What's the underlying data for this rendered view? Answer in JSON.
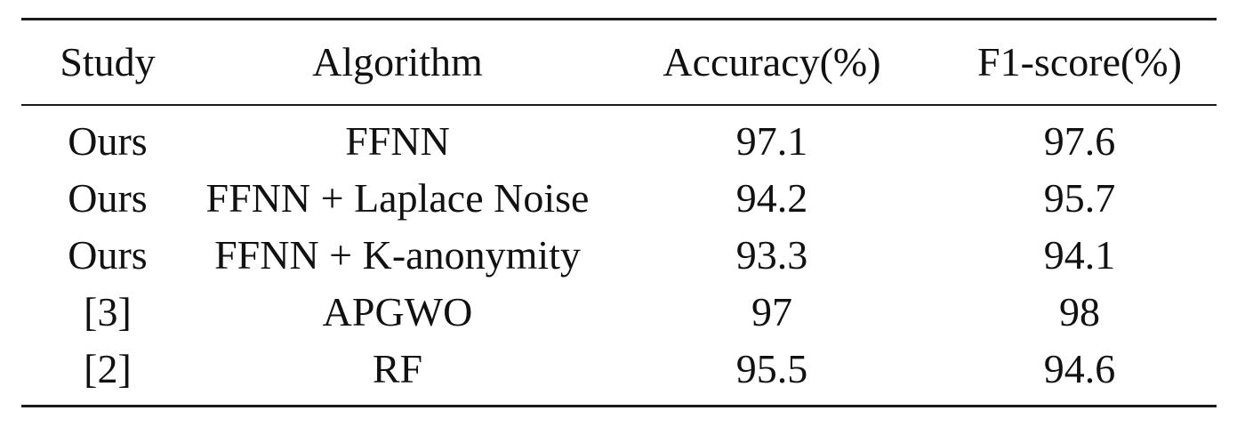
{
  "table": {
    "headers": [
      "Study",
      "Algorithm",
      "Accuracy(%)",
      "F1-score(%)"
    ],
    "rows": [
      [
        "Ours",
        "FFNN",
        "97.1",
        "97.6"
      ],
      [
        "Ours",
        "FFNN + Laplace Noise",
        "94.2",
        "95.7"
      ],
      [
        "Ours",
        "FFNN + K-anonymity",
        "93.3",
        "94.1"
      ],
      [
        "[3]",
        "APGWO",
        "97",
        "98"
      ],
      [
        "[2]",
        "RF",
        "95.5",
        "94.6"
      ]
    ]
  }
}
